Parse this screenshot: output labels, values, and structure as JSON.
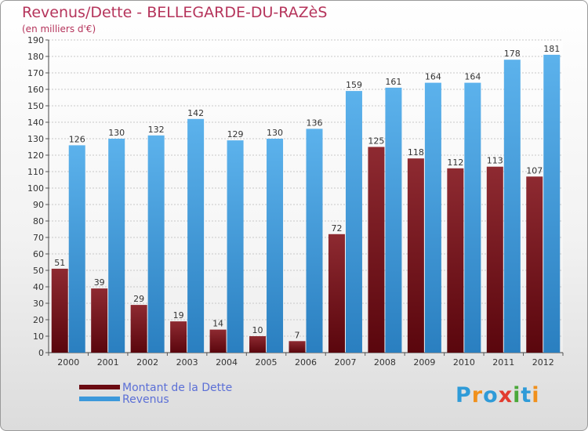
{
  "header": {
    "title": "Revenus/Dette - BELLEGARDE-DU-RAZèS",
    "subtitle": "(en milliers d'€)"
  },
  "chart_data": {
    "type": "bar",
    "categories": [
      "2000",
      "2001",
      "2002",
      "2003",
      "2004",
      "2005",
      "2006",
      "2007",
      "2008",
      "2009",
      "2010",
      "2011",
      "2012"
    ],
    "series": [
      {
        "name": "Montant de la Dette",
        "color": "#7a0f17",
        "values": [
          51,
          39,
          29,
          19,
          14,
          10,
          7,
          72,
          125,
          118,
          112,
          113,
          107
        ]
      },
      {
        "name": "Revenus",
        "color": "#3c99db",
        "values": [
          126,
          130,
          132,
          142,
          129,
          130,
          136,
          159,
          161,
          164,
          164,
          178,
          181
        ]
      }
    ],
    "title": "Revenus/Dette - BELLEGARDE-DU-RAZèS",
    "ylabel": "(en milliers d'€)",
    "ylim": [
      0,
      190
    ],
    "y_ticks": [
      0,
      10,
      20,
      30,
      40,
      50,
      60,
      70,
      80,
      90,
      100,
      110,
      120,
      130,
      140,
      150,
      160,
      170,
      180,
      190
    ],
    "grid": true,
    "legend_position": "bottom-left"
  },
  "legend": {
    "items": [
      {
        "label": "Montant de la Dette",
        "color": "#7a0f17"
      },
      {
        "label": "Revenus",
        "color": "#3c99db"
      }
    ]
  },
  "logo": {
    "text": "Proxiti",
    "letters": [
      "P",
      "r",
      "o",
      "x",
      "i",
      "t",
      "i"
    ],
    "colors": [
      "#2f9bd8",
      "#f0901c",
      "#2f9bd8",
      "#e23b2e",
      "#4ba83a",
      "#2f9bd8",
      "#f0901c"
    ]
  }
}
